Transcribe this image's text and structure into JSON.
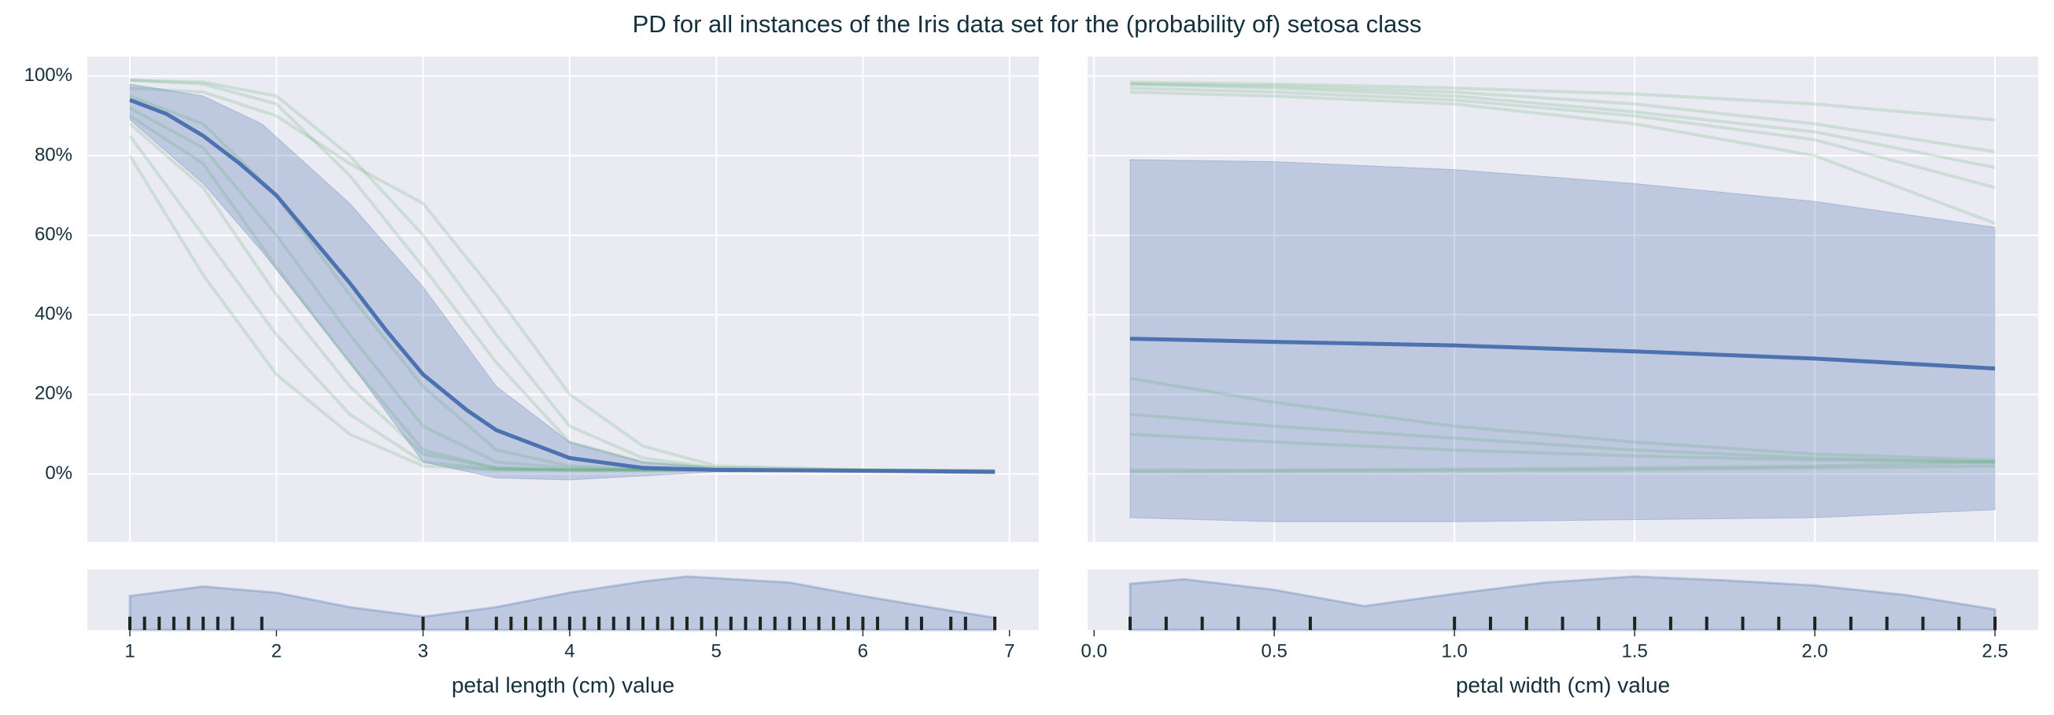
{
  "title": "PD for all instances of the Iris data set for the (probability of) setosa class",
  "chart_data": [
    {
      "type": "pdp",
      "xlabel": "petal length (cm) value",
      "xlim": [
        0.71,
        7.2
      ],
      "xticks": [
        1,
        2,
        3,
        4,
        5,
        6,
        7
      ],
      "ylim": [
        -17.1,
        104.9
      ],
      "yticks": [
        {
          "value": 0,
          "label": "0%"
        },
        {
          "value": 20,
          "label": "20%"
        },
        {
          "value": 40,
          "label": "40%"
        },
        {
          "value": 60,
          "label": "60%"
        },
        {
          "value": 80,
          "label": "80%"
        },
        {
          "value": 100,
          "label": "100%"
        }
      ],
      "grid": true,
      "ice": {
        "color": "#55a868",
        "x": [
          1,
          1.5,
          2,
          2.5,
          3,
          3.5,
          4,
          4.5,
          5,
          6,
          6.9
        ],
        "lines": [
          [
            99,
            98.5,
            95,
            80,
            60,
            35,
            12,
            4,
            1.5,
            1,
            0.8
          ],
          [
            99,
            98,
            93,
            75,
            52,
            28,
            8,
            3,
            1.5,
            1,
            0.8
          ],
          [
            95,
            88,
            70,
            45,
            22,
            6,
            2,
            1.2,
            1,
            0.9,
            0.7
          ],
          [
            92,
            82,
            60,
            35,
            12,
            3,
            1.5,
            1,
            1,
            0.9,
            0.7
          ],
          [
            90,
            78,
            52,
            28,
            6,
            1.5,
            1,
            1,
            1,
            0.8,
            0.6
          ],
          [
            88,
            72,
            45,
            22,
            5,
            1.5,
            1,
            1,
            1,
            0.8,
            0.6
          ],
          [
            85,
            60,
            35,
            15,
            3,
            1.2,
            1,
            1,
            1,
            0.8,
            0.6
          ],
          [
            80,
            50,
            25,
            10,
            2,
            1,
            1,
            1,
            1,
            0.8,
            0.6
          ],
          [
            97,
            96,
            90,
            78,
            68,
            45,
            20,
            7,
            2,
            1,
            0.8
          ]
        ]
      },
      "mean": {
        "color": "#4c72b0",
        "x": [
          1,
          1.25,
          1.5,
          1.75,
          2,
          2.25,
          2.5,
          2.75,
          3,
          3.3,
          3.5,
          4,
          4.5,
          5,
          6,
          6.9
        ],
        "values": [
          94,
          90.5,
          85,
          78,
          70,
          59,
          48,
          36,
          25,
          16,
          11,
          4,
          1.5,
          1,
          0.8,
          0.5
        ]
      },
      "band": {
        "x": [
          1,
          1.5,
          1.9,
          2.5,
          3,
          3.5,
          4,
          4.5,
          5,
          6,
          6.9
        ],
        "upper": [
          98,
          95,
          88,
          68,
          47,
          22,
          8,
          3,
          1.5,
          1,
          0.8
        ],
        "lower": [
          89,
          73,
          56,
          28,
          3,
          -1,
          -1.5,
          -0.5,
          0.5,
          0.6,
          0.3
        ]
      },
      "density": {
        "x": [
          1,
          1.5,
          2,
          2.5,
          3,
          3.5,
          4,
          4.5,
          4.8,
          5.5,
          6,
          6.5,
          6.9
        ],
        "values": [
          0.61,
          0.78,
          0.67,
          0.41,
          0.24,
          0.41,
          0.67,
          0.87,
          0.96,
          0.85,
          0.61,
          0.39,
          0.22
        ],
        "ylim": [
          0,
          1
        ]
      },
      "rug": {
        "color": "#222222",
        "x": [
          1,
          1.1,
          1.2,
          1.3,
          1.4,
          1.5,
          1.6,
          1.7,
          1.9,
          3,
          3.3,
          3.5,
          3.6,
          3.7,
          3.8,
          3.9,
          4,
          4.1,
          4.2,
          4.3,
          4.4,
          4.5,
          4.6,
          4.7,
          4.8,
          4.9,
          5,
          5.1,
          5.2,
          5.3,
          5.4,
          5.5,
          5.6,
          5.7,
          5.8,
          5.9,
          6,
          6.1,
          6.3,
          6.4,
          6.6,
          6.7,
          6.9
        ]
      }
    },
    {
      "type": "pdp",
      "xlabel": "petal width (cm) value",
      "xlim": [
        -0.018,
        2.62
      ],
      "xticks": [
        {
          "value": 0,
          "label": "0.0"
        },
        0.5,
        {
          "value": 1,
          "label": "1.0"
        },
        1.5,
        {
          "value": 2,
          "label": "2.0"
        },
        2.5
      ],
      "ylim": [
        -17.1,
        104.9
      ],
      "yticks": [
        0,
        20,
        40,
        60,
        80,
        100
      ],
      "ytick_labels": false,
      "grid": true,
      "ice": {
        "color": "#55a868",
        "x": [
          0.1,
          0.5,
          1,
          1.5,
          2,
          2.5
        ],
        "lines": [
          [
            98,
            97.5,
            96,
            93,
            88,
            81
          ],
          [
            97,
            96,
            94,
            90,
            84,
            72
          ],
          [
            98,
            97,
            95,
            91,
            86,
            77
          ],
          [
            96,
            95,
            93,
            88,
            80,
            63
          ],
          [
            98.5,
            98,
            97,
            95.5,
            93,
            89
          ],
          [
            1,
            1,
            1.2,
            1.5,
            2,
            3
          ],
          [
            0.5,
            0.6,
            0.8,
            1,
            1.5,
            2
          ],
          [
            15,
            12,
            9,
            6,
            4,
            3
          ],
          [
            10,
            8,
            6,
            4.5,
            3.5,
            3
          ],
          [
            24,
            18,
            12,
            8,
            5,
            3.5
          ]
        ]
      },
      "mean": {
        "color": "#4c72b0",
        "x": [
          0.1,
          0.5,
          1,
          1.5,
          2,
          2.5
        ],
        "values": [
          34,
          33.2,
          32.3,
          30.8,
          29,
          26.5
        ]
      },
      "band": {
        "x": [
          0.1,
          0.5,
          1,
          1.5,
          2,
          2.5
        ],
        "upper": [
          79,
          78.5,
          76.5,
          73,
          68.5,
          62
        ],
        "lower": [
          -11,
          -12,
          -12,
          -11.5,
          -11,
          -9
        ]
      },
      "density": {
        "x": [
          0.1,
          0.25,
          0.5,
          0.75,
          1,
          1.25,
          1.5,
          1.75,
          2,
          2.25,
          2.5
        ],
        "values": [
          0.83,
          0.91,
          0.72,
          0.43,
          0.65,
          0.85,
          0.96,
          0.89,
          0.8,
          0.63,
          0.37
        ],
        "ylim": [
          0,
          1
        ]
      },
      "rug": {
        "color": "#222222",
        "x": [
          0.1,
          0.2,
          0.3,
          0.4,
          0.5,
          0.6,
          1,
          1.1,
          1.2,
          1.3,
          1.4,
          1.5,
          1.6,
          1.7,
          1.8,
          1.9,
          2,
          2.1,
          2.2,
          2.3,
          2.4,
          2.5
        ]
      }
    }
  ]
}
